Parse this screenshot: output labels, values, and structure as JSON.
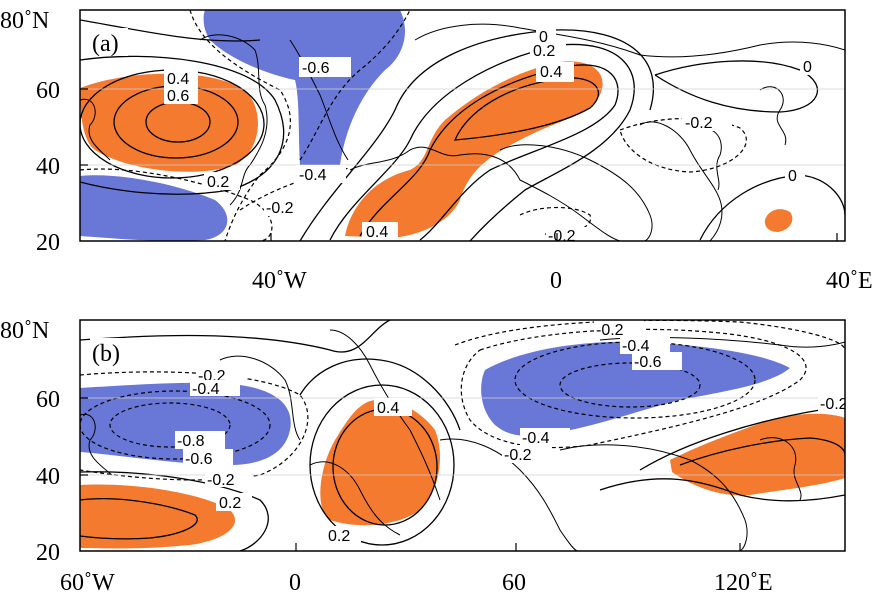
{
  "colors": {
    "positive_fill": "#f47a30",
    "negative_fill": "#6978d6",
    "contour": "#000000",
    "coastline": "#000000"
  },
  "panels": [
    {
      "label": "(a)",
      "lat_ticks": [
        "80˚N",
        "60",
        "40",
        "20"
      ],
      "lon_ticks": [
        "40˚W",
        "0",
        "40˚E"
      ],
      "contour_labels": [
        "0.4",
        "0.6",
        "-0.6",
        "0",
        "0.2",
        "0.4",
        "0.2",
        "-0.4",
        "-0.2",
        "0.4",
        "-0.2",
        "0",
        "0",
        "-0.2"
      ]
    },
    {
      "label": "(b)",
      "lat_ticks": [
        "80˚N",
        "60",
        "40",
        "20"
      ],
      "lon_ticks": [
        "60˚W",
        "0",
        "60",
        "120˚E"
      ],
      "contour_labels": [
        "-0.2",
        "-0.4",
        "-0.8",
        "-0.6",
        "-0.2",
        "0.2",
        "0.4",
        "0.2",
        "-0.2",
        "-0.4",
        "-0.6",
        "-0.4",
        "-0.2",
        "-0.2"
      ]
    }
  ]
}
